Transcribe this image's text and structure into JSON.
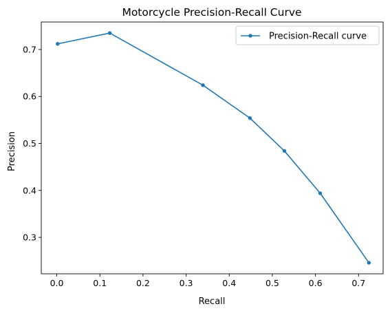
{
  "chart_data": {
    "type": "line",
    "title": "Motorcycle Precision-Recall Curve",
    "xlabel": "Recall",
    "ylabel": "Precision",
    "xlim": [
      -0.036,
      0.757
    ],
    "ylim": [
      0.2225,
      0.7585
    ],
    "xticks": [
      {
        "value": 0.0,
        "label": "0.0"
      },
      {
        "value": 0.1,
        "label": "0.1"
      },
      {
        "value": 0.2,
        "label": "0.2"
      },
      {
        "value": 0.3,
        "label": "0.3"
      },
      {
        "value": 0.4,
        "label": "0.4"
      },
      {
        "value": 0.5,
        "label": "0.5"
      },
      {
        "value": 0.6,
        "label": "0.6"
      },
      {
        "value": 0.7,
        "label": "0.7"
      }
    ],
    "yticks": [
      {
        "value": 0.3,
        "label": "0.3"
      },
      {
        "value": 0.4,
        "label": "0.4"
      },
      {
        "value": 0.5,
        "label": "0.5"
      },
      {
        "value": 0.6,
        "label": "0.6"
      },
      {
        "value": 0.7,
        "label": "0.7"
      }
    ],
    "grid": false,
    "legend_position": "top-right",
    "series": [
      {
        "name": "Precision-Recall curve",
        "color": "#1f77b4",
        "x": [
          0.002,
          0.123,
          0.339,
          0.448,
          0.528,
          0.611,
          0.724
        ],
        "y": [
          0.712,
          0.735,
          0.624,
          0.554,
          0.484,
          0.394,
          0.246
        ]
      }
    ]
  }
}
